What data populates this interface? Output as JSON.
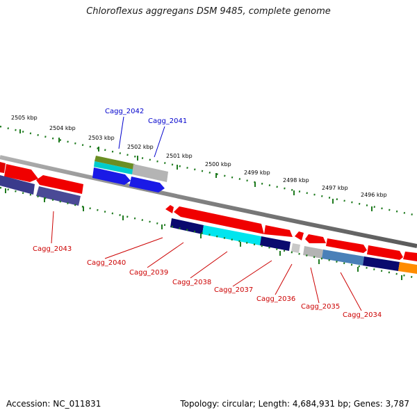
{
  "title": "Chloroflexus aggregans DSM 9485, complete genome",
  "footer": {
    "accession": "Accession: NC_011831",
    "summary": "Topology: circular; Length: 4,684,931 bp; Genes: 3,787"
  },
  "colors": {
    "background": "#ffffff",
    "backbone": "#808080",
    "ticks": "#1e7a1e",
    "label_top_strand": "#0000cc",
    "label_bottom_strand": "#cc0000",
    "leader_top_strand": "#0000cc",
    "leader_bottom_strand": "#cc0000"
  },
  "kbp_labels": [
    "2505 kbp",
    "2504 kbp",
    "2503 kbp",
    "2502 kbp",
    "2501 kbp",
    "2500 kbp",
    "2499 kbp",
    "2498 kbp",
    "2497 kbp",
    "2496 kbp"
  ],
  "gene_labels": {
    "top": [
      "Cagg_2042",
      "Cagg_2041"
    ],
    "bottom": [
      "Cagg_2043",
      "Cagg_2040",
      "Cagg_2039",
      "Cagg_2038",
      "Cagg_2037",
      "Cagg_2036",
      "Cagg_2035",
      "Cagg_2034"
    ]
  }
}
